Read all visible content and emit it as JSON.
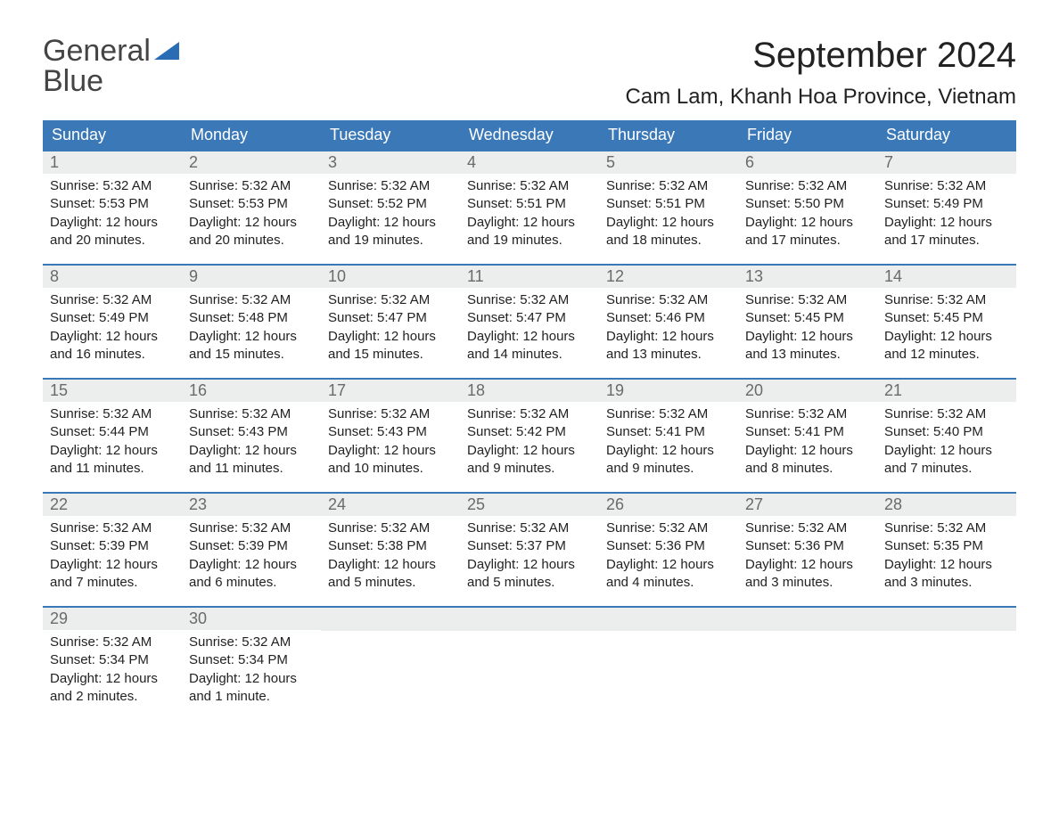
{
  "logo": {
    "line1": "General",
    "line2": "Blue"
  },
  "title": "September 2024",
  "location": "Cam Lam, Khanh Hoa Province, Vietnam",
  "colors": {
    "header_bg": "#3b78b8",
    "header_text": "#ffffff",
    "daynum_bg": "#eceded",
    "daynum_text": "#6a6a6a",
    "row_border": "#3b78b8",
    "body_text": "#222222",
    "logo_blue": "#2a6db5",
    "page_bg": "#ffffff"
  },
  "weekdays": [
    "Sunday",
    "Monday",
    "Tuesday",
    "Wednesday",
    "Thursday",
    "Friday",
    "Saturday"
  ],
  "labels": {
    "sunrise": "Sunrise:",
    "sunset": "Sunset:",
    "daylight": "Daylight:"
  },
  "weeks": [
    [
      {
        "n": "1",
        "sunrise": "5:32 AM",
        "sunset": "5:53 PM",
        "daylight": "12 hours and 20 minutes."
      },
      {
        "n": "2",
        "sunrise": "5:32 AM",
        "sunset": "5:53 PM",
        "daylight": "12 hours and 20 minutes."
      },
      {
        "n": "3",
        "sunrise": "5:32 AM",
        "sunset": "5:52 PM",
        "daylight": "12 hours and 19 minutes."
      },
      {
        "n": "4",
        "sunrise": "5:32 AM",
        "sunset": "5:51 PM",
        "daylight": "12 hours and 19 minutes."
      },
      {
        "n": "5",
        "sunrise": "5:32 AM",
        "sunset": "5:51 PM",
        "daylight": "12 hours and 18 minutes."
      },
      {
        "n": "6",
        "sunrise": "5:32 AM",
        "sunset": "5:50 PM",
        "daylight": "12 hours and 17 minutes."
      },
      {
        "n": "7",
        "sunrise": "5:32 AM",
        "sunset": "5:49 PM",
        "daylight": "12 hours and 17 minutes."
      }
    ],
    [
      {
        "n": "8",
        "sunrise": "5:32 AM",
        "sunset": "5:49 PM",
        "daylight": "12 hours and 16 minutes."
      },
      {
        "n": "9",
        "sunrise": "5:32 AM",
        "sunset": "5:48 PM",
        "daylight": "12 hours and 15 minutes."
      },
      {
        "n": "10",
        "sunrise": "5:32 AM",
        "sunset": "5:47 PM",
        "daylight": "12 hours and 15 minutes."
      },
      {
        "n": "11",
        "sunrise": "5:32 AM",
        "sunset": "5:47 PM",
        "daylight": "12 hours and 14 minutes."
      },
      {
        "n": "12",
        "sunrise": "5:32 AM",
        "sunset": "5:46 PM",
        "daylight": "12 hours and 13 minutes."
      },
      {
        "n": "13",
        "sunrise": "5:32 AM",
        "sunset": "5:45 PM",
        "daylight": "12 hours and 13 minutes."
      },
      {
        "n": "14",
        "sunrise": "5:32 AM",
        "sunset": "5:45 PM",
        "daylight": "12 hours and 12 minutes."
      }
    ],
    [
      {
        "n": "15",
        "sunrise": "5:32 AM",
        "sunset": "5:44 PM",
        "daylight": "12 hours and 11 minutes."
      },
      {
        "n": "16",
        "sunrise": "5:32 AM",
        "sunset": "5:43 PM",
        "daylight": "12 hours and 11 minutes."
      },
      {
        "n": "17",
        "sunrise": "5:32 AM",
        "sunset": "5:43 PM",
        "daylight": "12 hours and 10 minutes."
      },
      {
        "n": "18",
        "sunrise": "5:32 AM",
        "sunset": "5:42 PM",
        "daylight": "12 hours and 9 minutes."
      },
      {
        "n": "19",
        "sunrise": "5:32 AM",
        "sunset": "5:41 PM",
        "daylight": "12 hours and 9 minutes."
      },
      {
        "n": "20",
        "sunrise": "5:32 AM",
        "sunset": "5:41 PM",
        "daylight": "12 hours and 8 minutes."
      },
      {
        "n": "21",
        "sunrise": "5:32 AM",
        "sunset": "5:40 PM",
        "daylight": "12 hours and 7 minutes."
      }
    ],
    [
      {
        "n": "22",
        "sunrise": "5:32 AM",
        "sunset": "5:39 PM",
        "daylight": "12 hours and 7 minutes."
      },
      {
        "n": "23",
        "sunrise": "5:32 AM",
        "sunset": "5:39 PM",
        "daylight": "12 hours and 6 minutes."
      },
      {
        "n": "24",
        "sunrise": "5:32 AM",
        "sunset": "5:38 PM",
        "daylight": "12 hours and 5 minutes."
      },
      {
        "n": "25",
        "sunrise": "5:32 AM",
        "sunset": "5:37 PM",
        "daylight": "12 hours and 5 minutes."
      },
      {
        "n": "26",
        "sunrise": "5:32 AM",
        "sunset": "5:36 PM",
        "daylight": "12 hours and 4 minutes."
      },
      {
        "n": "27",
        "sunrise": "5:32 AM",
        "sunset": "5:36 PM",
        "daylight": "12 hours and 3 minutes."
      },
      {
        "n": "28",
        "sunrise": "5:32 AM",
        "sunset": "5:35 PM",
        "daylight": "12 hours and 3 minutes."
      }
    ],
    [
      {
        "n": "29",
        "sunrise": "5:32 AM",
        "sunset": "5:34 PM",
        "daylight": "12 hours and 2 minutes."
      },
      {
        "n": "30",
        "sunrise": "5:32 AM",
        "sunset": "5:34 PM",
        "daylight": "12 hours and 1 minute."
      },
      null,
      null,
      null,
      null,
      null
    ]
  ]
}
